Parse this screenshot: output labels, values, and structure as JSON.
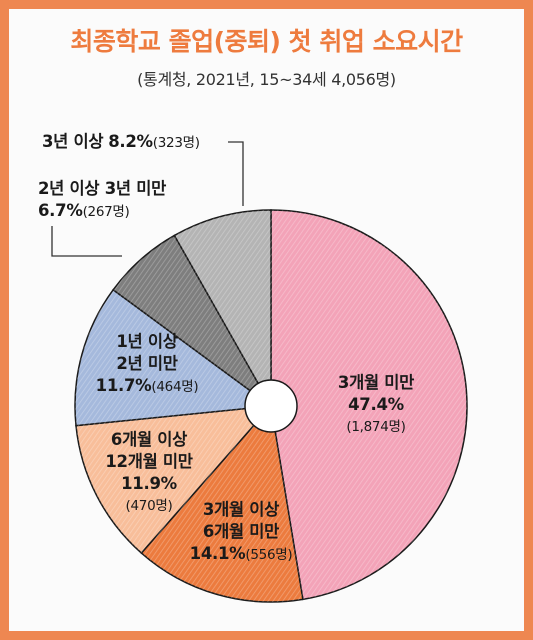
{
  "header": {
    "title": "최종학교 졸업(중퇴) 첫 취업 소요시간",
    "subtitle": "(통계청, 2021년, 15~34세 4,056명)"
  },
  "colors": {
    "border": "#ee8751",
    "title": "#ee7b3e"
  },
  "chart_data": {
    "type": "pie",
    "title": "최종학교 졸업(중퇴) 첫 취업 소요시간",
    "subtitle": "(통계청, 2021년, 15~34세 4,056명)",
    "unit": "%",
    "legend": "none",
    "slices": [
      {
        "line1": "3개월 미만",
        "line2": "",
        "percent_label": "47.4%",
        "count_label": "(1,874명)",
        "value": 47.4,
        "count": 1874,
        "color": "#f3a3b8"
      },
      {
        "line1": "3개월 이상",
        "line2": "6개월 미만",
        "percent_label": "14.1%",
        "count_label": "(556명)",
        "value": 14.1,
        "count": 556,
        "color": "#ec7b3e"
      },
      {
        "line1": "6개월 이상",
        "line2": "12개월 미만",
        "percent_label": "11.9%",
        "count_label": "(470명)",
        "value": 11.9,
        "count": 470,
        "color": "#f8be9a"
      },
      {
        "line1": "1년 이상",
        "line2": "2년 미만",
        "percent_label": "11.7%",
        "count_label": "(464명)",
        "value": 11.7,
        "count": 464,
        "color": "#a5b9dc"
      },
      {
        "line1": "2년 이상 3년 미만",
        "line2": "",
        "percent_label": "6.7%",
        "count_label": "(267명)",
        "value": 6.7,
        "count": 267,
        "color": "#7e7e7e"
      },
      {
        "line1": "3년 이상",
        "line2": "",
        "percent_label": "8.2%",
        "count_label": "(323명)",
        "value": 8.2,
        "count": 323,
        "color": "#b4b4b4"
      }
    ]
  }
}
